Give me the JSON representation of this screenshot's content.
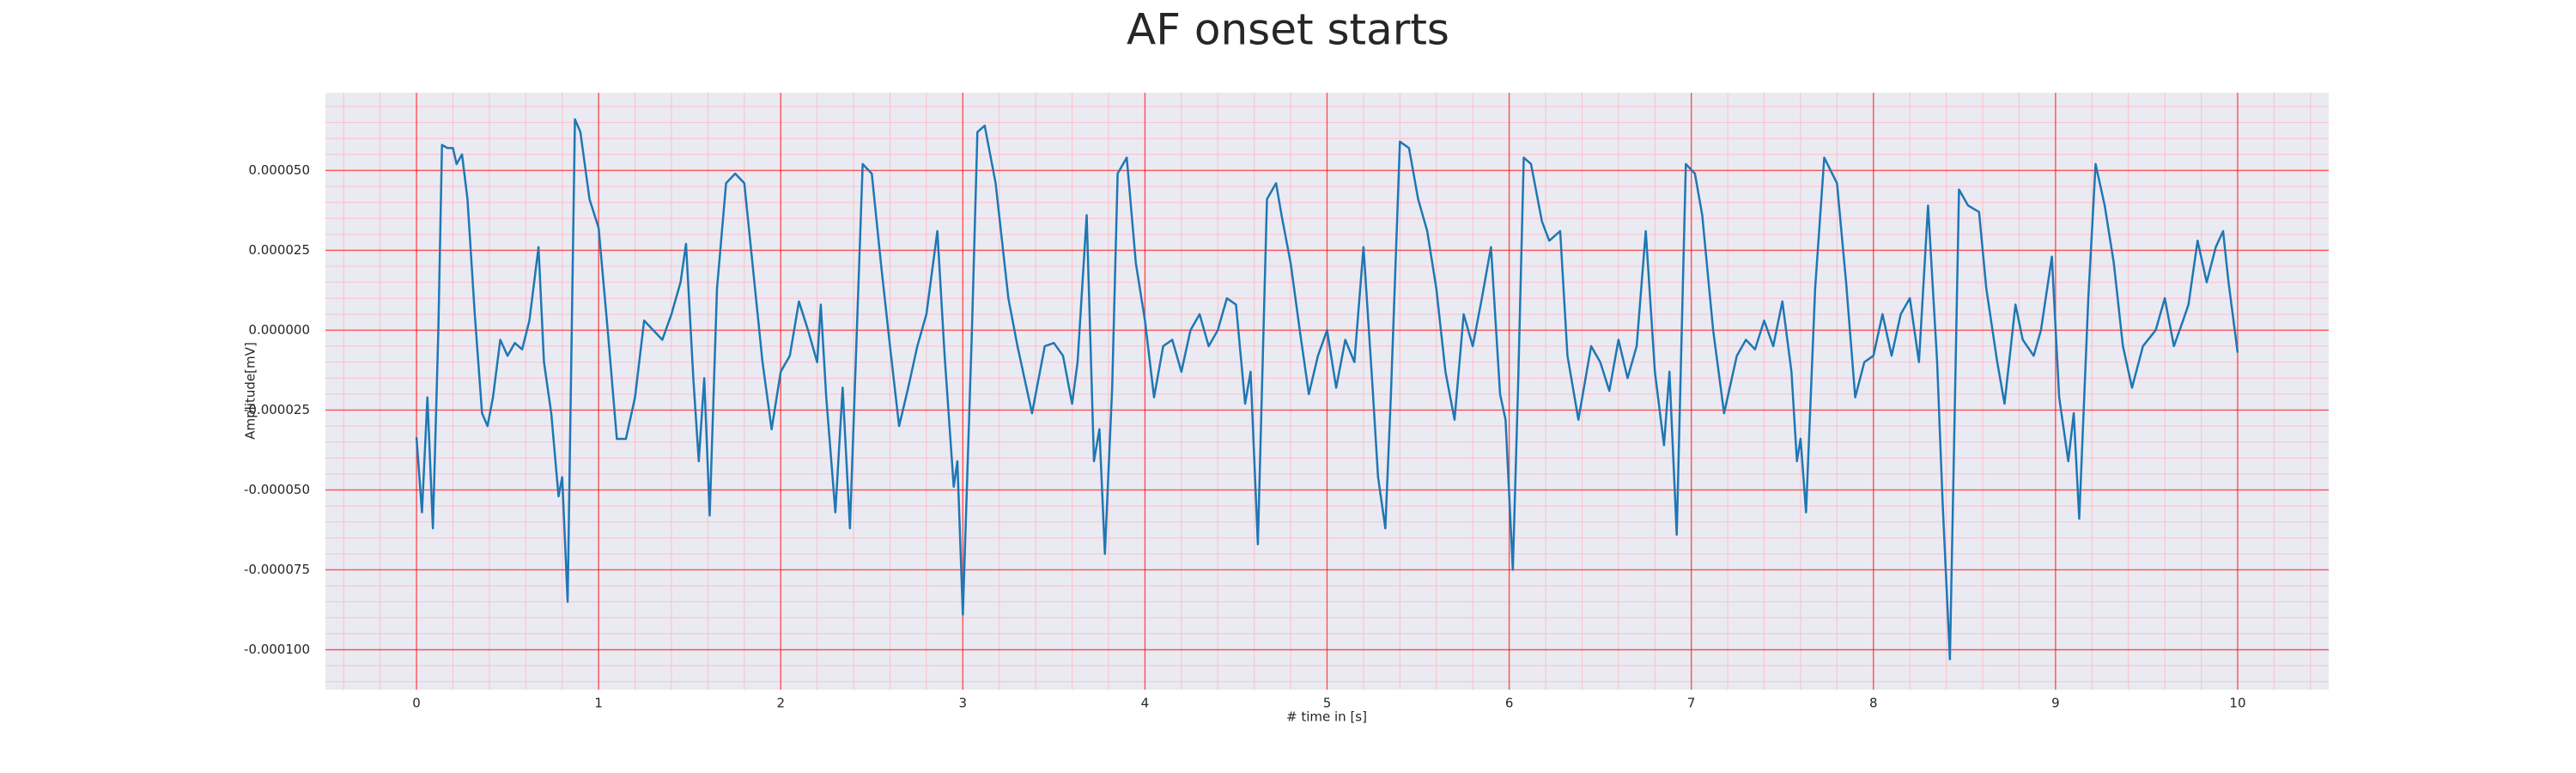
{
  "chart_data": {
    "type": "line",
    "title": "AF onset starts",
    "x_label": "# time in [s]",
    "y_label": "Amplitude[mV]",
    "color": "#1f77b4",
    "grid": true,
    "grid_color": "#ff0000",
    "minor_grid": true,
    "minor_grid_color": "#ffb6c1",
    "background": "#eaeaf2",
    "xlim": [
      -0.5,
      10.5
    ],
    "ylim": [
      -0.0001125,
      7.43e-05
    ],
    "xticks": [
      0,
      1,
      2,
      3,
      4,
      5,
      6,
      7,
      8,
      9,
      10
    ],
    "yticks": [
      {
        "value": -0.0001,
        "label": "-0.000100"
      },
      {
        "value": -7.5e-05,
        "label": "-0.000075"
      },
      {
        "value": -5e-05,
        "label": "-0.000050"
      },
      {
        "value": -2.5e-05,
        "label": "-0.000025"
      },
      {
        "value": 0,
        "label": "0.000000"
      },
      {
        "value": 2.5e-05,
        "label": "0.000025"
      },
      {
        "value": 5e-05,
        "label": "0.000050"
      }
    ],
    "x": [
      0.0,
      0.03,
      0.06,
      0.09,
      0.12,
      0.14,
      0.17,
      0.2,
      0.22,
      0.25,
      0.28,
      0.32,
      0.36,
      0.39,
      0.42,
      0.46,
      0.5,
      0.54,
      0.58,
      0.62,
      0.67,
      0.7,
      0.74,
      0.78,
      0.8,
      0.83,
      0.87,
      0.9,
      0.95,
      1.0,
      1.05,
      1.1,
      1.15,
      1.2,
      1.25,
      1.3,
      1.35,
      1.4,
      1.45,
      1.48,
      1.52,
      1.55,
      1.58,
      1.61,
      1.65,
      1.7,
      1.75,
      1.8,
      1.85,
      1.9,
      1.95,
      2.0,
      2.05,
      2.1,
      2.15,
      2.2,
      2.22,
      2.25,
      2.3,
      2.34,
      2.38,
      2.45,
      2.5,
      2.55,
      2.6,
      2.65,
      2.7,
      2.75,
      2.8,
      2.86,
      2.9,
      2.95,
      2.97,
      3.0,
      3.05,
      3.08,
      3.12,
      3.18,
      3.25,
      3.3,
      3.38,
      3.45,
      3.5,
      3.55,
      3.6,
      3.63,
      3.68,
      3.72,
      3.75,
      3.78,
      3.82,
      3.85,
      3.9,
      3.95,
      4.0,
      4.05,
      4.1,
      4.15,
      4.2,
      4.25,
      4.3,
      4.35,
      4.4,
      4.45,
      4.5,
      4.55,
      4.58,
      4.62,
      4.67,
      4.72,
      4.75,
      4.8,
      4.85,
      4.9,
      4.95,
      5.0,
      5.05,
      5.1,
      5.15,
      5.2,
      5.25,
      5.28,
      5.32,
      5.35,
      5.4,
      5.45,
      5.5,
      5.55,
      5.6,
      5.65,
      5.7,
      5.75,
      5.8,
      5.85,
      5.9,
      5.95,
      5.98,
      6.02,
      6.05,
      6.08,
      6.12,
      6.18,
      6.22,
      6.28,
      6.32,
      6.38,
      6.45,
      6.5,
      6.55,
      6.6,
      6.65,
      6.7,
      6.75,
      6.8,
      6.85,
      6.88,
      6.92,
      6.97,
      7.02,
      7.06,
      7.12,
      7.18,
      7.25,
      7.3,
      7.35,
      7.4,
      7.45,
      7.5,
      7.55,
      7.58,
      7.6,
      7.63,
      7.68,
      7.73,
      7.8,
      7.85,
      7.9,
      7.95,
      8.0,
      8.05,
      8.1,
      8.15,
      8.2,
      8.25,
      8.3,
      8.35,
      8.38,
      8.42,
      8.47,
      8.52,
      8.58,
      8.62,
      8.68,
      8.72,
      8.78,
      8.82,
      8.88,
      8.92,
      8.98,
      9.02,
      9.07,
      9.1,
      9.13,
      9.18,
      9.22,
      9.27,
      9.32,
      9.37,
      9.42,
      9.48,
      9.55,
      9.6,
      9.65,
      9.7,
      9.73,
      9.78,
      9.83,
      9.88,
      9.92,
      9.95,
      10.0
    ],
    "values": [
      -3.35e-05,
      -5.7e-05,
      -2.1e-05,
      -6.2e-05,
      0,
      5.8e-05,
      5.7e-05,
      5.7e-05,
      5.2e-05,
      5.5e-05,
      4.1e-05,
      5e-06,
      -2.6e-05,
      -3e-05,
      -2.1e-05,
      -3e-06,
      -8e-06,
      -4e-06,
      -6e-06,
      3e-06,
      2.6e-05,
      -1e-05,
      -2.6e-05,
      -5.2e-05,
      -4.6e-05,
      -8.5e-05,
      6.6e-05,
      6.2e-05,
      4.1e-05,
      3.2e-05,
      0,
      -3.4e-05,
      -3.4e-05,
      -2.1e-05,
      3e-06,
      0,
      -3e-06,
      5e-06,
      1.5e-05,
      2.7e-05,
      -1.5e-05,
      -4.1e-05,
      -1.5e-05,
      -5.8e-05,
      1.3e-05,
      4.6e-05,
      4.9e-05,
      4.6e-05,
      1.8e-05,
      -1e-05,
      -3.1e-05,
      -1.3e-05,
      -8e-06,
      9e-06,
      0,
      -1e-05,
      8e-06,
      -2.1e-05,
      -5.7e-05,
      -1.8e-05,
      -6.2e-05,
      5.2e-05,
      4.9e-05,
      2.1e-05,
      -5e-06,
      -3e-05,
      -1.8e-05,
      -5e-06,
      5e-06,
      3.1e-05,
      -8e-06,
      -4.9e-05,
      -4.1e-05,
      -8.9e-05,
      0,
      6.2e-05,
      6.4e-05,
      4.6e-05,
      1e-05,
      -5e-06,
      -2.6e-05,
      -5e-06,
      -4e-06,
      -8e-06,
      -2.3e-05,
      -1e-05,
      3.6e-05,
      -4.1e-05,
      -3.1e-05,
      -7e-05,
      -1.8e-05,
      4.9e-05,
      5.4e-05,
      2.1e-05,
      3e-06,
      -2.1e-05,
      -5e-06,
      -3e-06,
      -1.3e-05,
      0,
      5e-06,
      -5e-06,
      0,
      1e-05,
      8e-06,
      -2.3e-05,
      -1.3e-05,
      -6.7e-05,
      4.1e-05,
      4.6e-05,
      3.6e-05,
      2.1e-05,
      0,
      -2e-05,
      -8e-06,
      0,
      -1.8e-05,
      -3e-06,
      -1e-05,
      2.6e-05,
      -1.8e-05,
      -4.6e-05,
      -6.2e-05,
      -2.1e-05,
      5.9e-05,
      5.7e-05,
      4.1e-05,
      3.1e-05,
      1.3e-05,
      -1.3e-05,
      -2.8e-05,
      5e-06,
      -5e-06,
      1e-05,
      2.6e-05,
      -2e-05,
      -2.8e-05,
      -7.5e-05,
      -1.5e-05,
      5.4e-05,
      5.2e-05,
      3.4e-05,
      2.8e-05,
      3.1e-05,
      -8e-06,
      -2.8e-05,
      -5e-06,
      -1e-05,
      -1.9e-05,
      -3e-06,
      -1.5e-05,
      -5e-06,
      3.1e-05,
      -1.3e-05,
      -3.6e-05,
      -1.3e-05,
      -6.4e-05,
      5.2e-05,
      4.9e-05,
      3.6e-05,
      0,
      -2.6e-05,
      -8e-06,
      -3e-06,
      -6e-06,
      3e-06,
      -5e-06,
      9e-06,
      -1.3e-05,
      -4.1e-05,
      -3.4e-05,
      -5.7e-05,
      1.3e-05,
      5.4e-05,
      4.6e-05,
      1.5e-05,
      -2.1e-05,
      -1e-05,
      -8e-06,
      5e-06,
      -8e-06,
      5e-06,
      1e-05,
      -1e-05,
      3.9e-05,
      -1e-05,
      -5.4e-05,
      -0.000103,
      4.4e-05,
      3.9e-05,
      3.7e-05,
      1.3e-05,
      -1e-05,
      -2.3e-05,
      8e-06,
      -3e-06,
      -8e-06,
      0,
      2.3e-05,
      -2.1e-05,
      -4.1e-05,
      -2.6e-05,
      -5.9e-05,
      1e-05,
      5.2e-05,
      3.9e-05,
      2.1e-05,
      -5e-06,
      -1.8e-05,
      -5e-06,
      0,
      1e-05,
      -5e-06,
      3e-06,
      8e-06,
      2.8e-05,
      1.5e-05,
      2.6e-05,
      3.1e-05,
      1.5e-05,
      -7e-06
    ]
  }
}
